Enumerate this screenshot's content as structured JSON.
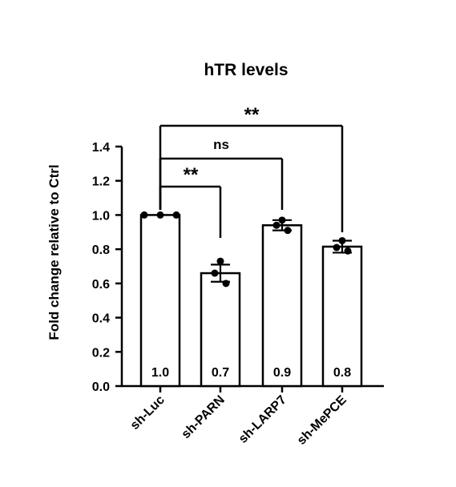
{
  "chart_data": {
    "type": "bar",
    "title": "hTR levels",
    "ylabel": "Fold change relative to Ctrl",
    "xlabel": "",
    "ylim": [
      0,
      1.4
    ],
    "yticks": [
      "0.0",
      "0.2",
      "0.4",
      "0.6",
      "0.8",
      "1.0",
      "1.2",
      "1.4"
    ],
    "categories": [
      "sh-Luc",
      "sh-PARN",
      "sh-LARP7",
      "sh-MePCE"
    ],
    "values": [
      1.0,
      0.66,
      0.94,
      0.815
    ],
    "errors": [
      0.0,
      0.05,
      0.03,
      0.035
    ],
    "bar_labels": [
      "1.0",
      "0.7",
      "0.9",
      "0.8"
    ],
    "points": [
      [
        1.0,
        1.0,
        1.0
      ],
      [
        0.73,
        0.66,
        0.6
      ],
      [
        0.97,
        0.94,
        0.91
      ],
      [
        0.85,
        0.81,
        0.79
      ]
    ],
    "comparisons": [
      {
        "from": "sh-Luc",
        "to": "sh-PARN",
        "label": "**"
      },
      {
        "from": "sh-Luc",
        "to": "sh-LARP7",
        "label": "ns"
      },
      {
        "from": "sh-Luc",
        "to": "sh-MePCE",
        "label": "**"
      }
    ],
    "grid": false,
    "legend": "none"
  }
}
